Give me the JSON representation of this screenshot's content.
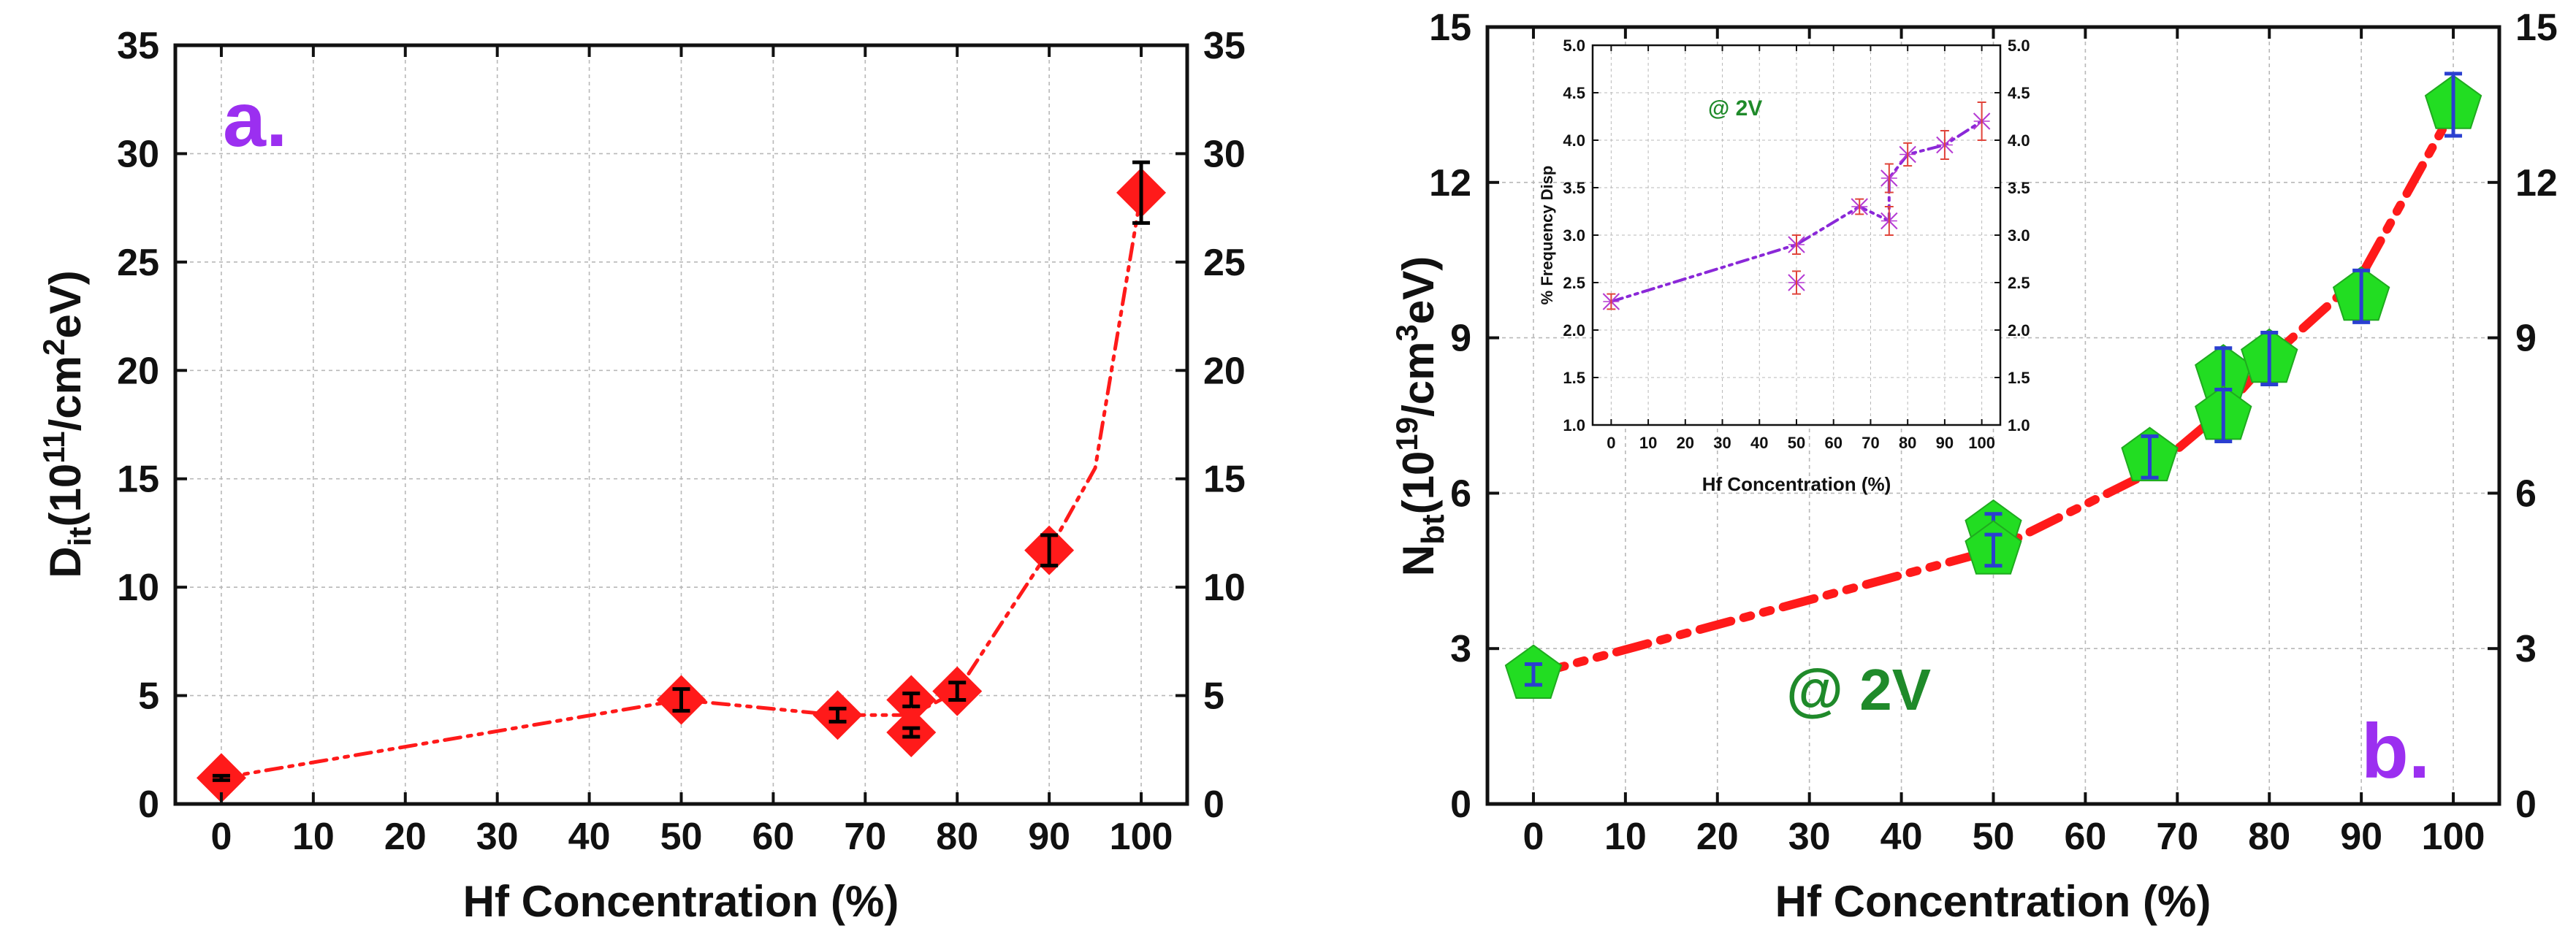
{
  "colors": {
    "axis": "#111111",
    "grid": "#b8b8b8",
    "fit_line": "#ff1a1a",
    "marker_red": "#ff1a1a",
    "marker_green": "#22dd22",
    "errorbar_black": "#000000",
    "errorbar_blue": "#2a3fd0",
    "panel_tag": "#9b2ff0",
    "voltage_label": "#1f8a2a",
    "inset_line": "#8a28d8",
    "inset_marker": "#b53ad3",
    "inset_errorbar": "#e0443a"
  },
  "chart_data": [
    {
      "id": "panel-a",
      "type": "scatter",
      "title": "",
      "panel_label": "a.",
      "xlabel": "Hf Concentration (%)",
      "ylabel": {
        "base": "D",
        "sub": "it",
        "pre": "(10",
        "sup1": "11",
        "mid": "/cm",
        "sup2": "2",
        "post": "eV)"
      },
      "xlim": [
        -5,
        105
      ],
      "ylim": [
        0,
        35
      ],
      "xticks": [
        "0",
        "10",
        "20",
        "30",
        "40",
        "50",
        "60",
        "70",
        "80",
        "90",
        "100"
      ],
      "xtick_values": [
        0,
        10,
        20,
        30,
        40,
        50,
        60,
        70,
        80,
        90,
        100
      ],
      "yticks": [
        "0",
        "5",
        "10",
        "15",
        "20",
        "25",
        "30",
        "35"
      ],
      "ytick_values": [
        0,
        5,
        10,
        15,
        20,
        25,
        30,
        35
      ],
      "grid": true,
      "marker": "diamond",
      "points": [
        {
          "x": 0,
          "y": 1.2,
          "err": 0.1
        },
        {
          "x": 50,
          "y": 4.8,
          "err": 0.5
        },
        {
          "x": 67,
          "y": 4.1,
          "err": 0.3
        },
        {
          "x": 75,
          "y": 4.8,
          "err": 0.3
        },
        {
          "x": 75,
          "y": 3.3,
          "err": 0.2
        },
        {
          "x": 80,
          "y": 5.2,
          "err": 0.4
        },
        {
          "x": 90,
          "y": 11.7,
          "err": 0.7
        },
        {
          "x": 100,
          "y": 28.2,
          "err": 1.4
        }
      ],
      "fit_curve": [
        [
          0,
          1.2
        ],
        [
          50,
          4.8
        ],
        [
          67,
          4.1
        ],
        [
          75,
          4.1
        ],
        [
          80,
          5.2
        ],
        [
          90,
          11.7
        ],
        [
          95,
          15.5
        ],
        [
          100,
          28.2
        ]
      ]
    },
    {
      "id": "panel-b",
      "type": "scatter",
      "title": "",
      "panel_label": "b.",
      "annotation": "@ 2V",
      "xlabel": "Hf Concentration (%)",
      "ylabel": {
        "base": "N",
        "sub": "bt",
        "pre": "(10",
        "sup1": "19",
        "mid": "/cm",
        "sup2": "3",
        "post": "eV)"
      },
      "xlim": [
        -5,
        105
      ],
      "ylim": [
        0,
        15
      ],
      "xticks": [
        "0",
        "10",
        "20",
        "30",
        "40",
        "50",
        "60",
        "70",
        "80",
        "90",
        "100"
      ],
      "xtick_values": [
        0,
        10,
        20,
        30,
        40,
        50,
        60,
        70,
        80,
        90,
        100
      ],
      "yticks": [
        "0",
        "3",
        "6",
        "9",
        "12",
        "15"
      ],
      "ytick_values": [
        0,
        3,
        6,
        9,
        12,
        15
      ],
      "grid": true,
      "marker": "pentagon",
      "points": [
        {
          "x": 0,
          "y": 2.5,
          "err": 0.2
        },
        {
          "x": 50,
          "y": 5.3,
          "err": 0.3
        },
        {
          "x": 50,
          "y": 4.9,
          "err": 0.3
        },
        {
          "x": 67,
          "y": 6.7,
          "err": 0.4
        },
        {
          "x": 75,
          "y": 8.3,
          "err": 0.5
        },
        {
          "x": 75,
          "y": 7.5,
          "err": 0.5
        },
        {
          "x": 80,
          "y": 8.6,
          "err": 0.5
        },
        {
          "x": 90,
          "y": 9.8,
          "err": 0.5
        },
        {
          "x": 100,
          "y": 13.5,
          "err": 0.6
        }
      ],
      "fit_curve": [
        [
          0,
          2.5
        ],
        [
          50,
          4.9
        ],
        [
          67,
          6.4
        ],
        [
          75,
          7.6
        ],
        [
          80,
          8.6
        ],
        [
          90,
          10.2
        ],
        [
          100,
          13.4
        ]
      ]
    },
    {
      "id": "panel-b-inset",
      "type": "scatter",
      "title": "",
      "annotation": "@ 2V",
      "xlabel": "Hf Concentration (%)",
      "ylabel": "% Frequency Disp",
      "xlim": [
        -5,
        105
      ],
      "ylim": [
        1.0,
        5.0
      ],
      "xticks": [
        "0",
        "10",
        "20",
        "30",
        "40",
        "50",
        "60",
        "70",
        "80",
        "90",
        "100"
      ],
      "xtick_values": [
        0,
        10,
        20,
        30,
        40,
        50,
        60,
        70,
        80,
        90,
        100
      ],
      "yticks": [
        "1.0",
        "1.5",
        "2.0",
        "2.5",
        "3.0",
        "3.5",
        "4.0",
        "4.5",
        "5.0"
      ],
      "ytick_values": [
        1.0,
        1.5,
        2.0,
        2.5,
        3.0,
        3.5,
        4.0,
        4.5,
        5.0
      ],
      "grid": true,
      "marker": "cross",
      "points": [
        {
          "x": 0,
          "y": 2.3,
          "err": 0.08
        },
        {
          "x": 50,
          "y": 2.9,
          "err": 0.1
        },
        {
          "x": 50,
          "y": 2.5,
          "err": 0.12
        },
        {
          "x": 67,
          "y": 3.3,
          "err": 0.08
        },
        {
          "x": 75,
          "y": 3.6,
          "err": 0.15
        },
        {
          "x": 75,
          "y": 3.15,
          "err": 0.15
        },
        {
          "x": 80,
          "y": 3.85,
          "err": 0.12
        },
        {
          "x": 90,
          "y": 3.95,
          "err": 0.15
        },
        {
          "x": 100,
          "y": 4.2,
          "err": 0.2
        }
      ],
      "fit_curve": [
        [
          0,
          2.3
        ],
        [
          50,
          2.9
        ],
        [
          67,
          3.3
        ],
        [
          75,
          3.15
        ],
        [
          75,
          3.6
        ],
        [
          80,
          3.85
        ],
        [
          90,
          3.95
        ],
        [
          100,
          4.2
        ]
      ]
    }
  ]
}
